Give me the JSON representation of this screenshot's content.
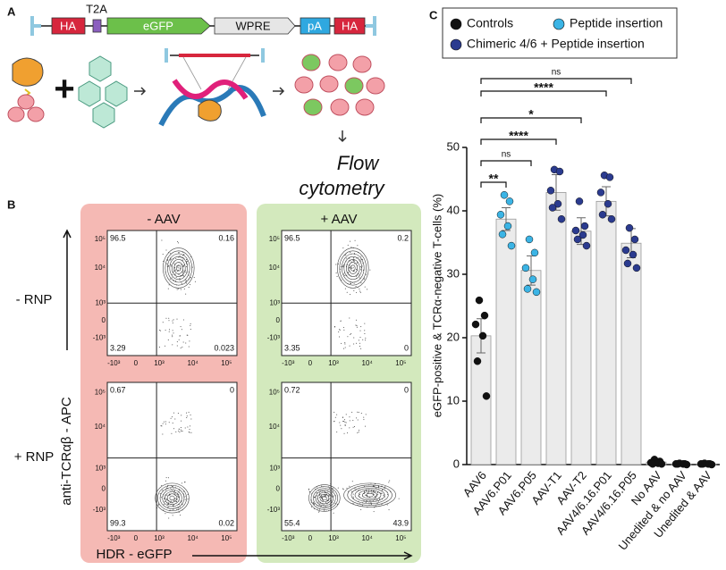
{
  "panel_a": {
    "letter": "A",
    "construct": [
      "HA",
      "T2A",
      "eGFP",
      "WPRE",
      "pA",
      "HA"
    ],
    "readout": [
      "Flow",
      "cytometry"
    ]
  },
  "panel_b": {
    "letter": "B",
    "columns": [
      "- AAV",
      "+ AAV"
    ],
    "rows": [
      "- RNP",
      "+ RNP"
    ],
    "y_label": "anti-TCRαβ - APC",
    "x_label": "HDR - eGFP",
    "y_tick_labels": [
      "10⁵",
      "10⁴",
      "10³",
      "0",
      "-10³"
    ],
    "x_tick_labels": [
      "-10³",
      "0",
      "10³",
      "10⁴",
      "10⁵"
    ],
    "plots": [
      {
        "quadrants": [
          96.5,
          0.16,
          3.29,
          0.023
        ]
      },
      {
        "quadrants": [
          96.5,
          0.2,
          3.35,
          0
        ]
      },
      {
        "quadrants": [
          0.67,
          0,
          99.3,
          0.02
        ]
      },
      {
        "quadrants": [
          0.72,
          0,
          55.4,
          43.9
        ]
      }
    ]
  },
  "chart_data": {
    "type": "bar",
    "letter": "C",
    "y_label": "eGFP-positive & TCRα-negative T-cells (%)",
    "categories": [
      "AAV6",
      "AAV6.P01",
      "AAV6.P05",
      "AAV-T1",
      "AAV-T2",
      "AAV4/6.16.P01",
      "AAV4/6.16.P05",
      "No AAV",
      "Unedited & no AAV",
      "Unedited & AAV"
    ],
    "values": [
      20.3,
      38.7,
      30.6,
      42.9,
      36.8,
      41.5,
      34.9,
      0.4,
      0.1,
      0.1
    ],
    "errors": [
      2.7,
      1.8,
      2.3,
      2.8,
      2.1,
      2.3,
      2.3,
      0.2,
      0.1,
      0.1
    ],
    "points": [
      [
        25.9,
        23.5,
        22.1,
        20.3,
        16.3,
        10.8
      ],
      [
        42.5,
        41.5,
        39.4,
        37.6,
        36.3,
        34.5
      ],
      [
        35.5,
        33.4,
        31.0,
        29.2,
        27.7,
        27.2
      ],
      [
        46.5,
        46.2,
        43.2,
        41.1,
        40.5,
        38.7
      ],
      [
        41.5,
        37.6,
        36.9,
        36.2,
        35.5,
        34.5
      ],
      [
        45.6,
        45.3,
        42.9,
        41.1,
        39.4,
        38.7
      ],
      [
        37.3,
        35.5,
        33.8,
        33.1,
        31.7,
        31.0
      ],
      [
        0.8,
        0.5,
        0.3,
        0.2,
        0.1,
        0.1
      ],
      [
        0.2,
        0.1,
        0.1,
        0.1,
        0.1,
        0.0
      ],
      [
        0.2,
        0.1,
        0.1,
        0.1,
        0.1,
        0.0
      ]
    ],
    "point_group": [
      0,
      1,
      1,
      2,
      2,
      2,
      2,
      0,
      0,
      0
    ],
    "legend": [
      {
        "name": "Controls",
        "color": "#111111"
      },
      {
        "name": "Peptide insertion",
        "color": "#3bb4e5"
      },
      {
        "name": "Chimeric 4/6 + Peptide insertion",
        "color": "#2b3b8f"
      }
    ],
    "bar_color": "#ebebeb",
    "comparisons": [
      {
        "to": 6,
        "label": "ns"
      },
      {
        "to": 5,
        "label": "****"
      },
      {
        "to": 4,
        "label": "*"
      },
      {
        "to": 3,
        "label": "****"
      },
      {
        "to": 2,
        "label": "ns"
      },
      {
        "to": 1,
        "label": "**"
      }
    ],
    "ylim": [
      0,
      50
    ],
    "yticks": [
      0,
      10,
      20,
      30,
      40,
      50
    ]
  }
}
